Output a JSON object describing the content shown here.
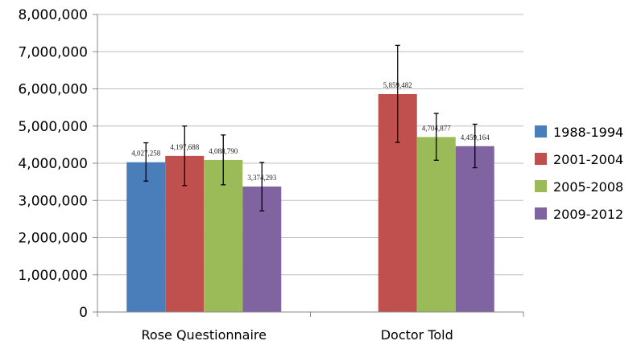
{
  "chart_data": {
    "type": "bar",
    "categories": [
      "Rose Questionnaire",
      "Doctor Told"
    ],
    "series": [
      {
        "name": "1988-1994",
        "color": "#4a7ebb",
        "values": [
          4027258,
          null
        ],
        "labels": [
          "4,027,258",
          ""
        ],
        "err_low": [
          3520000,
          null
        ],
        "err_high": [
          4550000,
          null
        ]
      },
      {
        "name": "2001-2004",
        "color": "#c0504d",
        "values": [
          4197688,
          5859482
        ],
        "labels": [
          "4,197,688",
          "5,859,482"
        ],
        "err_low": [
          3400000,
          4560000
        ],
        "err_high": [
          5000000,
          7170000
        ]
      },
      {
        "name": "2005-2008",
        "color": "#9bbb59",
        "values": [
          4088790,
          4704877
        ],
        "labels": [
          "4,088,790",
          "4,704,877"
        ],
        "err_low": [
          3420000,
          4080000
        ],
        "err_high": [
          4760000,
          5340000
        ]
      },
      {
        "name": "2009-2012",
        "color": "#8064a2",
        "values": [
          3374293,
          4459164
        ],
        "labels": [
          "3,374,293",
          "4,459,164"
        ],
        "err_low": [
          2720000,
          3880000
        ],
        "err_high": [
          4020000,
          5050000
        ]
      }
    ],
    "ylim": [
      0,
      8000000
    ],
    "yticks": [
      0,
      1000000,
      2000000,
      3000000,
      4000000,
      5000000,
      6000000,
      7000000,
      8000000
    ],
    "ytick_labels": [
      "0",
      "1,000,000",
      "2,000,000",
      "3,000,000",
      "4,000,000",
      "5,000,000",
      "6,000,000",
      "7,000,000",
      "8,000,000"
    ],
    "grid": true,
    "legend": "right",
    "title": "",
    "xlabel": "",
    "ylabel": ""
  }
}
